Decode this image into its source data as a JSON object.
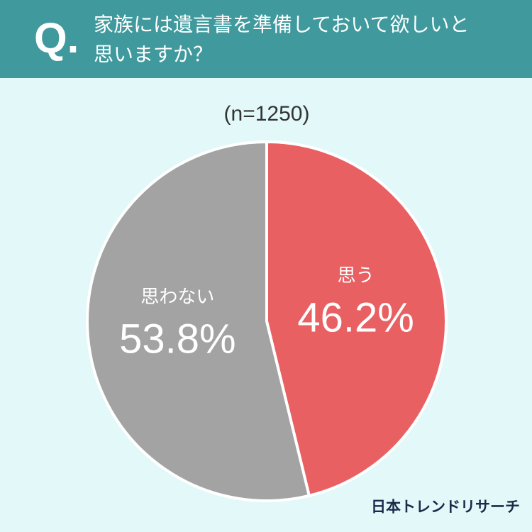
{
  "chart_data": {
    "type": "pie",
    "question_label": "Q.",
    "title": "家族には遺言書を準備しておいて欲しいと思いますか？",
    "subtitle": "(n=1250)",
    "categories": [
      "思う",
      "思わない"
    ],
    "values": [
      46.2,
      53.8
    ],
    "value_labels": [
      "46.2%",
      "53.8%"
    ],
    "colors": [
      "#e86062",
      "#a3a3a3"
    ],
    "source": "日本トレンドリサーチ"
  }
}
